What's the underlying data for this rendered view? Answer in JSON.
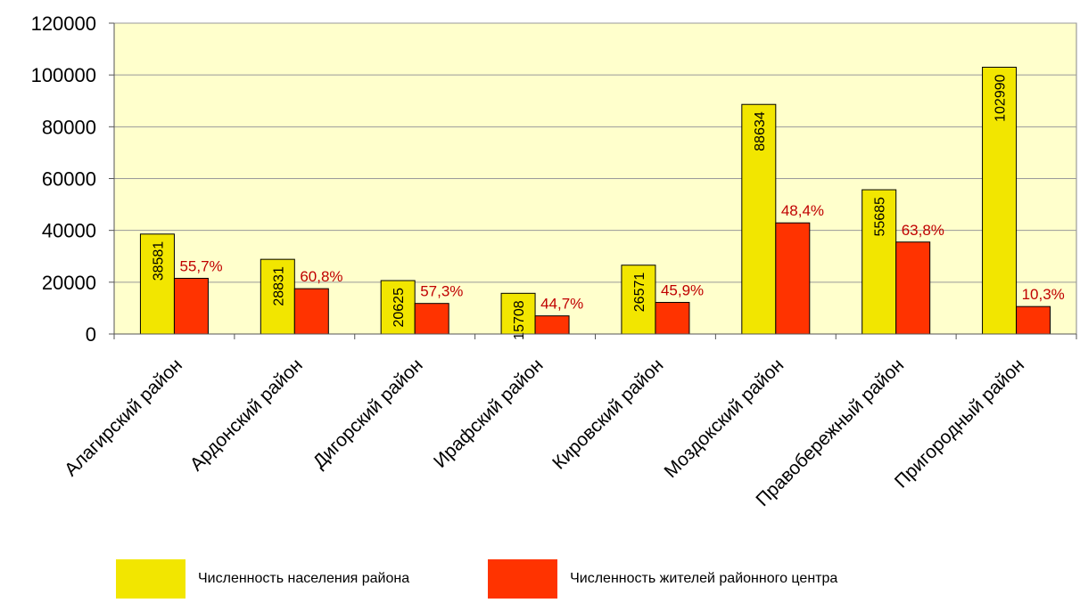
{
  "chart_data": {
    "type": "bar",
    "categories": [
      "Алагирский район",
      "Ардонский район",
      "Дигорский район",
      "Ирафский район",
      "Кировский район",
      "Моздокский район",
      "Правобережный район",
      "Пригородный район"
    ],
    "series": [
      {
        "name": "Численность населения района",
        "color": "#f2e600",
        "values": [
          38581,
          28831,
          20625,
          15708,
          26571,
          88634,
          55685,
          102990
        ],
        "labels": [
          "38581",
          "28831",
          "20625",
          "15708",
          "26571",
          "88634",
          "55685",
          "102990"
        ]
      },
      {
        "name": "Численность жителей районного центра",
        "color": "#ff3300",
        "values": [
          21500,
          17500,
          11800,
          7000,
          12200,
          42900,
          35500,
          10600
        ],
        "labels": [
          "55,7%",
          "60,8%",
          "57,3%",
          "44,7%",
          "45,9%",
          "48,4%",
          "63,8%",
          "10,3%"
        ]
      }
    ],
    "y_ticks": [
      "0",
      "20000",
      "40000",
      "60000",
      "80000",
      "100000",
      "120000"
    ],
    "ylim": [
      0,
      120000
    ],
    "plot_background": "#ffffcc",
    "grid": true,
    "legend_position": "bottom"
  }
}
